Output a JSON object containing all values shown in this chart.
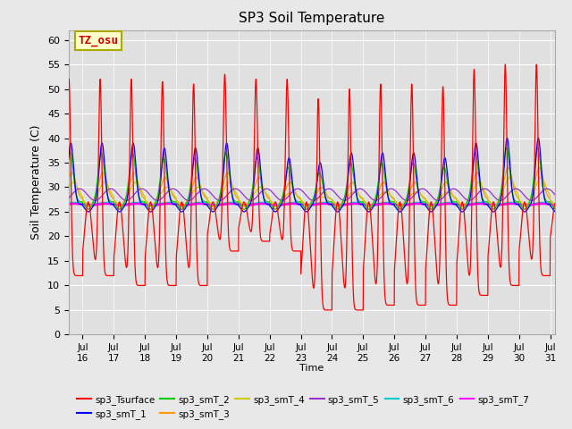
{
  "title": "SP3 Soil Temperature",
  "ylabel": "Soil Temperature (C)",
  "xlabel": "Time",
  "bg_color": "#e8e8e8",
  "plot_bg_color": "#e0e0e0",
  "ylim": [
    0,
    62
  ],
  "yticks": [
    0,
    5,
    10,
    15,
    20,
    25,
    30,
    35,
    40,
    45,
    50,
    55,
    60
  ],
  "annotation_text": "TZ_osu",
  "annotation_color": "#cc0000",
  "annotation_bg": "#ffffcc",
  "annotation_border": "#aaaa00",
  "series_colors": {
    "sp3_Tsurface": "#ff0000",
    "sp3_smT_1": "#0000ff",
    "sp3_smT_2": "#00cc00",
    "sp3_smT_3": "#ff9900",
    "sp3_smT_4": "#cccc00",
    "sp3_smT_5": "#9933cc",
    "sp3_smT_6": "#00cccc",
    "sp3_smT_7": "#ff00ff"
  },
  "xtick_labels": [
    "Jul 16",
    "Jul 17",
    "Jul 18",
    "Jul 19",
    "Jul 20",
    "Jul 21",
    "Jul 22",
    "Jul 23",
    "Jul 24",
    "Jul 25",
    "Jul 26",
    "Jul 27",
    "Jul 28",
    "Jul 29",
    "Jul 30",
    "Jul 31"
  ],
  "xtick_positions": [
    16,
    17,
    18,
    19,
    20,
    21,
    22,
    23,
    24,
    25,
    26,
    27,
    28,
    29,
    30,
    31
  ],
  "surface_peaks": [
    52,
    52,
    51.5,
    51,
    53,
    52,
    52,
    48,
    50,
    51,
    51,
    50.5,
    54,
    55,
    55,
    55
  ],
  "surface_lows": [
    12,
    10,
    10,
    10,
    17,
    19,
    17,
    5,
    5,
    6,
    6,
    6,
    8,
    10,
    12,
    16
  ],
  "smT1_peaks": [
    39,
    39,
    38,
    38,
    39,
    38,
    36,
    35,
    37,
    37,
    37,
    36,
    39,
    40,
    40,
    40
  ],
  "smT2_peaks": [
    37,
    37,
    36,
    36,
    37,
    36,
    34,
    33,
    35,
    35,
    35,
    34,
    37,
    38,
    38,
    38
  ],
  "smT3_peaks": [
    33,
    33,
    32,
    32,
    33,
    32,
    31,
    30,
    31,
    31,
    31,
    31,
    33,
    34,
    34,
    35
  ],
  "smT4_peaks": [
    31,
    31,
    30,
    30,
    31,
    30,
    29,
    28,
    29,
    29,
    29,
    29,
    31,
    32,
    32,
    33
  ],
  "smT5_base": 28.5,
  "smT5_amp": 1.2,
  "smT6_base": 26.7,
  "smT6_amp": 0.2,
  "smT7_base": 26.5,
  "smT7_amp": 0.15
}
